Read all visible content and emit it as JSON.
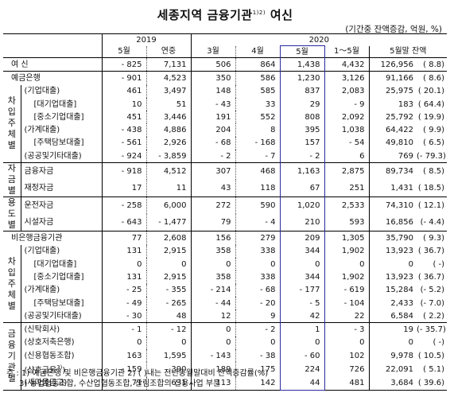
{
  "title": "세종지역 금융기관",
  "title_sup": "1)2)",
  "title_suffix": "여신",
  "unit": "(기간중 잔액증감, 억원, %)",
  "headers": {
    "y2019": "2019",
    "y2020": "2020",
    "c1": "5월",
    "c2": "연중",
    "c3": "3월",
    "c4": "4월",
    "c5": "5월",
    "c6": "1～5월",
    "c7": "5월말 잔액"
  },
  "groups": {
    "chaip1": [
      "차",
      "입",
      "주",
      "체",
      "별"
    ],
    "jageum": [
      "자",
      "금",
      "별"
    ],
    "yongdo": [
      "용",
      "도",
      "별"
    ],
    "chaip2": [
      "차",
      "입",
      "주",
      "체",
      "별"
    ],
    "geumyung": [
      "금",
      "융",
      "기",
      "관",
      "별"
    ]
  },
  "rows": [
    {
      "label": "여  신",
      "v": [
        "- 825",
        "7,131",
        "506",
        "864",
        "1,438",
        "4,432",
        "126,956",
        "( 8.8)"
      ]
    },
    {
      "label": "예금은행",
      "v": [
        "- 901",
        "4,523",
        "350",
        "586",
        "1,230",
        "3,126",
        "91,166",
        "( 8.6)"
      ]
    },
    {
      "label": "(기업대출)",
      "v": [
        "461",
        "3,497",
        "148",
        "585",
        "837",
        "2,083",
        "25,975",
        "( 20.1)"
      ]
    },
    {
      "label": "[대기업대출]",
      "v": [
        "10",
        "51",
        "- 43",
        "33",
        "29",
        "- 9",
        "183",
        "( 64.4)"
      ]
    },
    {
      "label": "[중소기업대출]",
      "v": [
        "451",
        "3,446",
        "191",
        "552",
        "808",
        "2,092",
        "25,792",
        "( 19.9)"
      ]
    },
    {
      "label": "(가계대출)",
      "v": [
        "- 438",
        "4,886",
        "204",
        "8",
        "395",
        "1,038",
        "64,422",
        "( 9.9)"
      ]
    },
    {
      "label": "[주택담보대출]",
      "v": [
        "- 561",
        "2,926",
        "- 68",
        "- 168",
        "157",
        "- 54",
        "49,810",
        "( 6.5)"
      ]
    },
    {
      "label": "(공공및기타대출)",
      "v": [
        "- 924",
        "- 3,859",
        "- 2",
        "- 7",
        "- 2",
        "6",
        "769",
        "(- 79.3)"
      ]
    },
    {
      "label": "금융자금",
      "v": [
        "- 918",
        "4,512",
        "307",
        "468",
        "1,163",
        "2,875",
        "89,734",
        "( 8.5)"
      ]
    },
    {
      "label": "재정자금",
      "v": [
        "17",
        "11",
        "43",
        "118",
        "67",
        "251",
        "1,431",
        "( 18.5)"
      ]
    },
    {
      "label": "운전자금",
      "v": [
        "- 258",
        "6,000",
        "272",
        "590",
        "1,020",
        "2,533",
        "74,310",
        "( 12.1)"
      ]
    },
    {
      "label": "시설자금",
      "v": [
        "- 643",
        "- 1,477",
        "79",
        "- 4",
        "210",
        "593",
        "16,856",
        "(- 4.4)"
      ]
    },
    {
      "label": "비은행금융기관",
      "v": [
        "77",
        "2,608",
        "156",
        "279",
        "209",
        "1,305",
        "35,790",
        "( 9.3)"
      ]
    },
    {
      "label": "(기업대출)",
      "v": [
        "131",
        "2,915",
        "358",
        "338",
        "344",
        "1,902",
        "13,923",
        "( 36.7)"
      ]
    },
    {
      "label": "[대기업대출]",
      "v": [
        "0",
        "0",
        "0",
        "0",
        "0",
        "0",
        "0",
        "( -)"
      ]
    },
    {
      "label": "[중소기업대출]",
      "v": [
        "131",
        "2,915",
        "358",
        "338",
        "344",
        "1,902",
        "13,923",
        "( 36.7)"
      ]
    },
    {
      "label": "(가계대출)",
      "v": [
        "- 25",
        "- 355",
        "- 214",
        "- 68",
        "- 177",
        "- 619",
        "15,284",
        "(- 5.2)"
      ]
    },
    {
      "label": "[주택담보대출]",
      "v": [
        "- 49",
        "- 265",
        "- 44",
        "- 20",
        "- 5",
        "- 104",
        "2,433",
        "(- 7.0)"
      ]
    },
    {
      "label": "(공공및기타대출)",
      "v": [
        "- 30",
        "48",
        "12",
        "9",
        "42",
        "22",
        "6,584",
        "( 2.2)"
      ]
    },
    {
      "label": "(신탁회사)",
      "v": [
        "- 1",
        "- 12",
        "0",
        "- 2",
        "1",
        "- 3",
        "19",
        "(- 35.7)"
      ]
    },
    {
      "label": "(상호저축은행)",
      "v": [
        "0",
        "0",
        "0",
        "0",
        "0",
        "0",
        "0",
        "( -)"
      ]
    },
    {
      "label": "(신용협동조합)",
      "v": [
        "163",
        "1,595",
        "- 143",
        "- 38",
        "- 60",
        "102",
        "9,978",
        "( 10.5)"
      ]
    },
    {
      "label": "(상호금융",
      "sup": "3)",
      "label_end": ")",
      "v": [
        "- 159",
        "390",
        "189",
        "175",
        "224",
        "726",
        "22,091",
        "( 5.1)"
      ]
    },
    {
      "label": "(새마을금고)",
      "v": [
        "71",
        "631",
        "113",
        "142",
        "44",
        "481",
        "3,684",
        "( 39.6)"
      ]
    }
  ],
  "notes": [
    "주 : 1) 예금은행 및 비은행금융기관 2) (   )내는 전년동월말대비 잔액증감률(%)",
    "3) 농업협동조합, 수산업협동조합, 산림조합의 신용사업 부문"
  ]
}
